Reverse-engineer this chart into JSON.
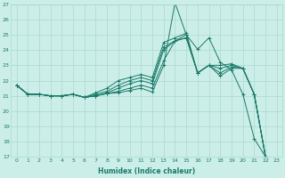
{
  "xlabel": "Humidex (Indice chaleur)",
  "background_color": "#cceee8",
  "line_color": "#1a7a6a",
  "grid_color": "#aad8d0",
  "xlim": [
    -0.5,
    23.5
  ],
  "ylim": [
    17,
    27
  ],
  "xticks": [
    0,
    1,
    2,
    3,
    4,
    5,
    6,
    7,
    8,
    9,
    10,
    11,
    12,
    13,
    14,
    15,
    16,
    17,
    18,
    19,
    20,
    21,
    22,
    23
  ],
  "yticks": [
    17,
    18,
    19,
    20,
    21,
    22,
    23,
    24,
    25,
    26,
    27
  ],
  "lines": [
    {
      "x": [
        0,
        1,
        2,
        3,
        4,
        5,
        6,
        7,
        8,
        9,
        10,
        11,
        12,
        13,
        14,
        15,
        16,
        17,
        18,
        19,
        20,
        21,
        22
      ],
      "y": [
        21.7,
        21.1,
        21.1,
        21.0,
        21.0,
        21.1,
        20.9,
        21.0,
        21.15,
        21.2,
        21.35,
        21.5,
        21.25,
        23.0,
        27.1,
        25.0,
        24.05,
        24.8,
        23.2,
        22.7,
        21.1,
        18.2,
        17.0
      ]
    },
    {
      "x": [
        0,
        1,
        2,
        3,
        4,
        5,
        6,
        7,
        8,
        9,
        10,
        11,
        12,
        13,
        14,
        15,
        16,
        17,
        18,
        19,
        20,
        21,
        22
      ],
      "y": [
        21.7,
        21.1,
        21.1,
        21.0,
        21.0,
        21.1,
        20.9,
        21.0,
        21.15,
        21.3,
        21.5,
        21.7,
        21.5,
        23.3,
        24.6,
        24.8,
        22.5,
        23.0,
        22.3,
        22.8,
        22.8,
        21.1,
        17.0
      ]
    },
    {
      "x": [
        0,
        1,
        2,
        3,
        4,
        5,
        6,
        7,
        8,
        9,
        10,
        11,
        12,
        13,
        14,
        15,
        16,
        17,
        18,
        19,
        20,
        21,
        22
      ],
      "y": [
        21.7,
        21.1,
        21.1,
        21.0,
        21.0,
        21.1,
        20.9,
        21.0,
        21.2,
        21.5,
        21.8,
        22.0,
        21.8,
        24.0,
        24.6,
        24.8,
        22.5,
        23.0,
        22.5,
        22.9,
        22.8,
        21.1,
        17.0
      ]
    },
    {
      "x": [
        0,
        1,
        2,
        3,
        4,
        5,
        6,
        7,
        8,
        9,
        10,
        11,
        12,
        13,
        14,
        15,
        16,
        17,
        18,
        19,
        20,
        21,
        22
      ],
      "y": [
        21.7,
        21.1,
        21.1,
        21.0,
        21.0,
        21.1,
        20.9,
        21.1,
        21.3,
        21.7,
        22.0,
        22.2,
        22.0,
        24.2,
        24.6,
        25.0,
        22.5,
        23.0,
        22.8,
        23.0,
        22.8,
        21.1,
        17.0
      ]
    },
    {
      "x": [
        0,
        1,
        2,
        3,
        4,
        5,
        6,
        7,
        8,
        9,
        10,
        11,
        12,
        13,
        14,
        15,
        16,
        17,
        18,
        19,
        20,
        21,
        22
      ],
      "y": [
        21.7,
        21.1,
        21.1,
        21.0,
        21.0,
        21.1,
        20.9,
        21.2,
        21.5,
        22.0,
        22.2,
        22.4,
        22.2,
        24.5,
        24.8,
        25.1,
        22.5,
        23.0,
        23.0,
        23.1,
        22.8,
        21.1,
        17.0
      ]
    }
  ]
}
